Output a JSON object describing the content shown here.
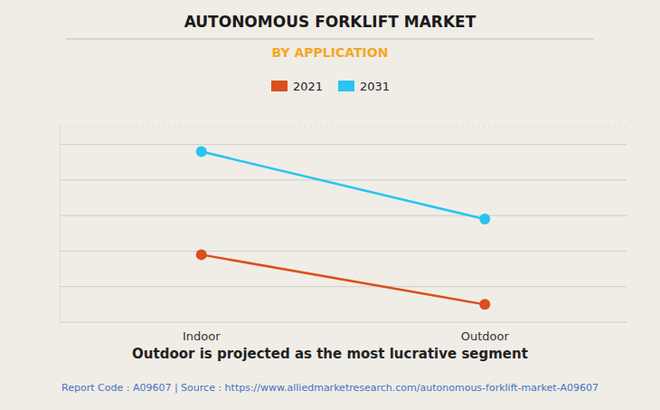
{
  "chart_data": {
    "type": "line",
    "title": "AUTONOMOUS FORKLIFT MARKET",
    "subtitle": "BY APPLICATION",
    "categories": [
      "Indoor",
      "Outdoor"
    ],
    "series": [
      {
        "name": "2021",
        "color": "#D94F1E",
        "marker": "circle",
        "values": [
          0.38,
          0.1
        ]
      },
      {
        "name": "2031",
        "color": "#29C4F0",
        "marker": "circle",
        "values": [
          0.96,
          0.58
        ]
      }
    ],
    "ylim": [
      0.0,
      1.1
    ],
    "yticks": [
      0,
      0.2,
      0.4,
      0.6,
      0.8,
      1.0
    ],
    "grid": true,
    "tick_labels": "x",
    "legend": "top",
    "annotations": [
      "Outdoor is projected as the most lucrative segment",
      "Report Code : A09607  |  Source : https://www.alliedmarketresearch.com/autonomous-forklift-market-A09607"
    ]
  }
}
